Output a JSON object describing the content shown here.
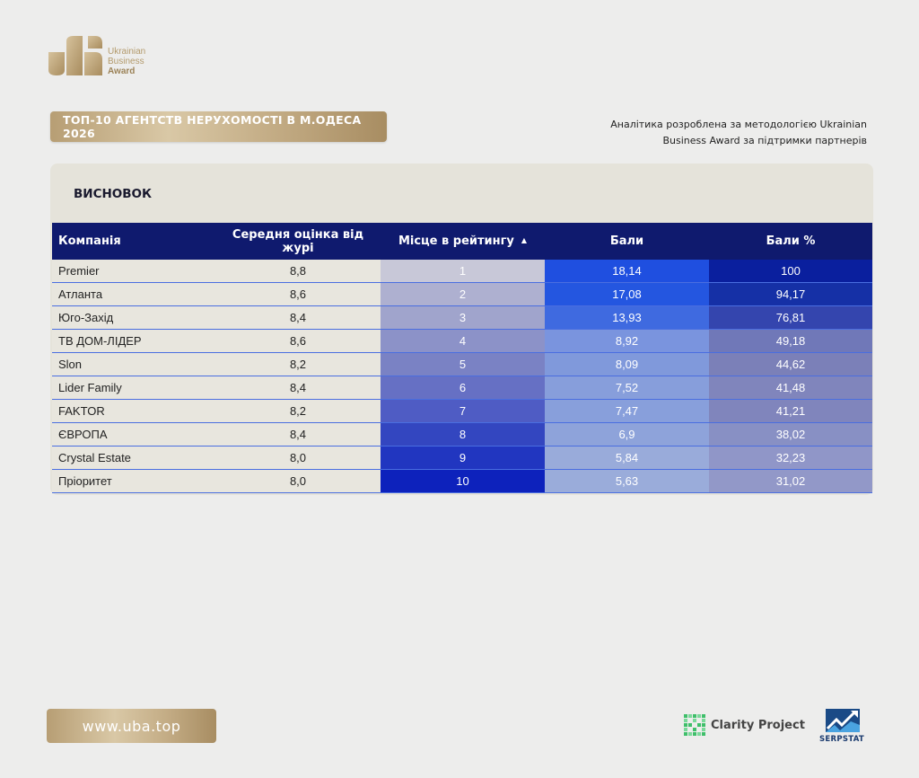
{
  "logo": {
    "line1": "Ukrainian",
    "line2": "Business",
    "line3": "Award"
  },
  "title": "ТОП-10 АГЕНТСТВ НЕРУХОМОСТІ В М.ОДЕСА 2026",
  "note": "Аналітика розроблена за методологією Ukrainian Business Award за підтримки партнерів",
  "card_title": "ВИСНОВОК",
  "table": {
    "headers": [
      "Компанія",
      "Середня оцінка від журі",
      "Місце в рейтингу",
      "Бали",
      "Бали %"
    ],
    "sort_indicator": "▲",
    "rows": [
      {
        "company": "Premier",
        "score": "8,8",
        "place": "1",
        "points": "18,14",
        "percent": "100"
      },
      {
        "company": "Атланта",
        "score": "8,6",
        "place": "2",
        "points": "17,08",
        "percent": "94,17"
      },
      {
        "company": "Юго-Захід",
        "score": "8,4",
        "place": "3",
        "points": "13,93",
        "percent": "76,81"
      },
      {
        "company": "ТВ ДОМ-ЛІДЕР",
        "score": "8,6",
        "place": "4",
        "points": "8,92",
        "percent": "49,18"
      },
      {
        "company": "Slon",
        "score": "8,2",
        "place": "5",
        "points": "8,09",
        "percent": "44,62"
      },
      {
        "company": "Lider Family",
        "score": "8,4",
        "place": "6",
        "points": "7,52",
        "percent": "41,48"
      },
      {
        "company": "FAKTOR",
        "score": "8,2",
        "place": "7",
        "points": "7,47",
        "percent": "41,21"
      },
      {
        "company": "ЄВРОПА",
        "score": "8,4",
        "place": "8",
        "points": "6,9",
        "percent": "38,02"
      },
      {
        "company": "Crystal Estate",
        "score": "8,0",
        "place": "9",
        "points": "5,84",
        "percent": "32,23"
      },
      {
        "company": "Пріоритет",
        "score": "8,0",
        "place": "10",
        "points": "5,63",
        "percent": "31,02"
      }
    ],
    "colors": {
      "place": [
        "#c8c8d8",
        "#aeb0d0",
        "#a0a4cc",
        "#8c92c8",
        "#7a82c4",
        "#6670c4",
        "#4f5cc4",
        "#3346c0",
        "#2136c0",
        "#0d22bc"
      ],
      "points": [
        "#1f4fe0",
        "#2456e0",
        "#3f6ae0",
        "#7a94de",
        "#8099db",
        "#879edb",
        "#889fdb",
        "#8ea3da",
        "#99abda",
        "#9aacda"
      ],
      "percent": [
        "#0a1f9e",
        "#1530a6",
        "#3445ae",
        "#7078b8",
        "#7b80b8",
        "#8085bc",
        "#8085bc",
        "#8890c4",
        "#9096c8",
        "#9298c8"
      ]
    }
  },
  "footer": {
    "url": "www.uba.top",
    "clarity": "Clarity Project",
    "serpstat": "SERPSTAT"
  }
}
